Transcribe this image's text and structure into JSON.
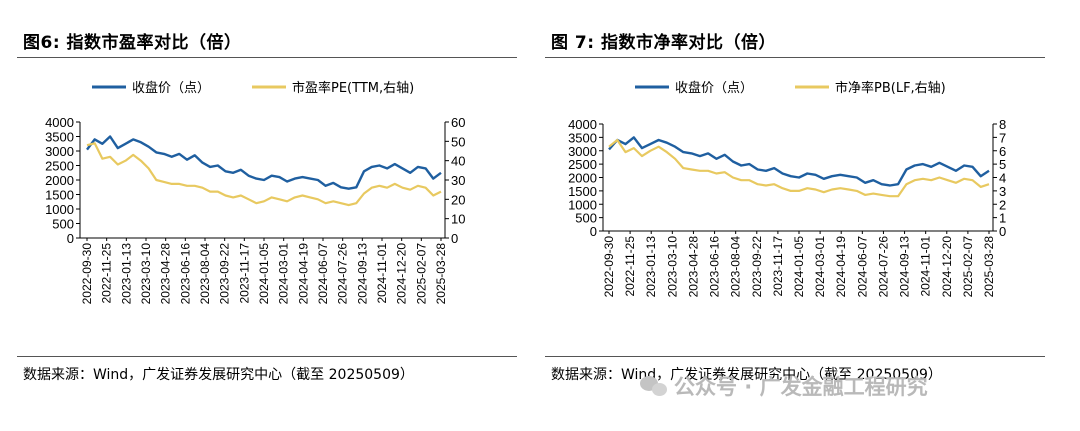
{
  "panels": [
    {
      "title": "图6:  指数市盈率对比（倍）",
      "source": "数据来源：Wind，广发证券发展研究中心（截至 20250509）"
    },
    {
      "title": "图 7:  指数市净率对比（倍）",
      "source": "数据来源：Wind，广发证券发展研究中心（截至 20250509）"
    }
  ],
  "watermark": "公众号 · 广发金融工程研究",
  "colors": {
    "close": "#1f5fa0",
    "ratio": "#e8c960",
    "axis": "#000000",
    "rule": "#555555"
  },
  "chart_data": [
    {
      "type": "line",
      "legend_position": "top",
      "grid": false,
      "x_tick_labels": [
        "2022-09-30",
        "2022-11-25",
        "2023-01-13",
        "2023-03-10",
        "2023-04-28",
        "2023-06-16",
        "2023-08-04",
        "2023-09-22",
        "2023-11-17",
        "2024-01-05",
        "2024-03-01",
        "2024-04-19",
        "2024-06-07",
        "2024-07-26",
        "2024-09-13",
        "2024-11-01",
        "2024-12-20",
        "2025-02-07",
        "2025-03-28"
      ],
      "ylim_left": [
        0,
        4000
      ],
      "yticks_left": [
        0,
        500,
        1000,
        1500,
        2000,
        2500,
        3000,
        3500,
        4000
      ],
      "ylim_right": [
        0,
        60
      ],
      "yticks_right": [
        0,
        10,
        20,
        30,
        40,
        50,
        60
      ],
      "series": [
        {
          "name": "收盘价（点）",
          "axis": "left",
          "values": [
            3050,
            3400,
            3250,
            3500,
            3100,
            3250,
            3400,
            3300,
            3150,
            2950,
            2900,
            2800,
            2900,
            2700,
            2850,
            2600,
            2450,
            2500,
            2300,
            2250,
            2350,
            2150,
            2050,
            2000,
            2150,
            2100,
            1950,
            2050,
            2100,
            2050,
            2000,
            1800,
            1900,
            1750,
            1700,
            1750,
            2300,
            2450,
            2500,
            2400,
            2550,
            2400,
            2250,
            2450,
            2400,
            2050,
            2250
          ]
        },
        {
          "name": "市盈率PE(TTM,右轴)",
          "axis": "right",
          "values": [
            48,
            49,
            41,
            42,
            38,
            40,
            43,
            40,
            36,
            30,
            29,
            28,
            28,
            27,
            27,
            26,
            24,
            24,
            22,
            21,
            22,
            20,
            18,
            19,
            21,
            20,
            19,
            21,
            22,
            21,
            20,
            18,
            19,
            18,
            17,
            18,
            23,
            26,
            27,
            26,
            28,
            26,
            25,
            27,
            26,
            22,
            24
          ]
        }
      ]
    },
    {
      "type": "line",
      "legend_position": "top",
      "grid": false,
      "x_tick_labels": [
        "2022-09-30",
        "2022-11-25",
        "2023-01-13",
        "2023-03-10",
        "2023-04-28",
        "2023-06-16",
        "2023-08-04",
        "2023-09-22",
        "2023-11-17",
        "2024-01-05",
        "2024-03-01",
        "2024-04-19",
        "2024-06-07",
        "2024-07-26",
        "2024-09-13",
        "2024-11-01",
        "2024-12-20",
        "2025-02-07",
        "2025-03-28"
      ],
      "ylim_left": [
        0,
        4000
      ],
      "yticks_left": [
        0,
        500,
        1000,
        1500,
        2000,
        2500,
        3000,
        3500,
        4000
      ],
      "ylim_right": [
        0,
        8
      ],
      "yticks_right": [
        0,
        1,
        2,
        3,
        4,
        5,
        6,
        7,
        8
      ],
      "series": [
        {
          "name": "收盘价（点）",
          "axis": "left",
          "values": [
            3050,
            3400,
            3250,
            3500,
            3100,
            3250,
            3400,
            3300,
            3150,
            2950,
            2900,
            2800,
            2900,
            2700,
            2850,
            2600,
            2450,
            2500,
            2300,
            2250,
            2350,
            2150,
            2050,
            2000,
            2150,
            2100,
            1950,
            2050,
            2100,
            2050,
            2000,
            1800,
            1900,
            1750,
            1700,
            1750,
            2300,
            2450,
            2500,
            2400,
            2550,
            2400,
            2250,
            2450,
            2400,
            2050,
            2250
          ]
        },
        {
          "name": "市净率PB(LF,右轴)",
          "axis": "right",
          "values": [
            6.3,
            6.8,
            5.9,
            6.2,
            5.6,
            6.0,
            6.3,
            5.9,
            5.4,
            4.7,
            4.6,
            4.5,
            4.5,
            4.3,
            4.4,
            4.0,
            3.8,
            3.8,
            3.5,
            3.4,
            3.5,
            3.2,
            3.0,
            3.0,
            3.2,
            3.1,
            2.9,
            3.1,
            3.2,
            3.1,
            3.0,
            2.7,
            2.8,
            2.7,
            2.6,
            2.6,
            3.5,
            3.8,
            3.9,
            3.8,
            4.0,
            3.8,
            3.6,
            3.9,
            3.8,
            3.3,
            3.5
          ]
        }
      ]
    }
  ]
}
